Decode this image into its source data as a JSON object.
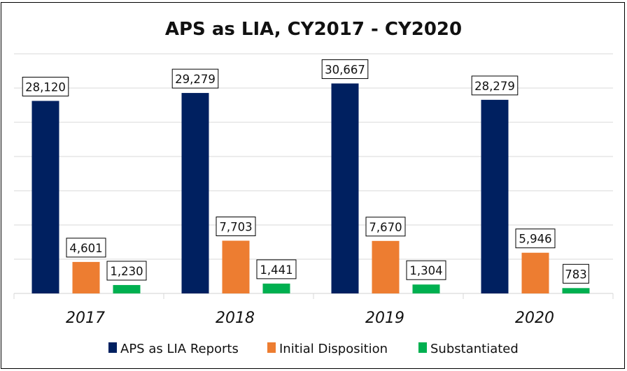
{
  "chart_data": {
    "type": "bar",
    "title": "APS as LIA, CY2017 - CY2020",
    "xlabel": "",
    "ylabel": "",
    "categories": [
      "2017",
      "2018",
      "2019",
      "2020"
    ],
    "series": [
      {
        "name": "APS as LIA Reports",
        "color": "#002060",
        "values": [
          28120,
          29279,
          30667,
          28279
        ],
        "labels": [
          "28,120",
          "29,279",
          "30,667",
          "28,279"
        ]
      },
      {
        "name": "Initial Disposition",
        "color": "#ED7D31",
        "values": [
          4601,
          7703,
          7670,
          5946
        ],
        "labels": [
          "4,601",
          "7,703",
          "7,670",
          "5,946"
        ]
      },
      {
        "name": "Substantiated",
        "color": "#00B050",
        "values": [
          1230,
          1441,
          1304,
          783
        ],
        "labels": [
          "1,230",
          "1,441",
          "1,304",
          "783"
        ]
      }
    ],
    "ylim": [
      0,
      35000
    ],
    "y_gridline_step": 5000,
    "grid": true,
    "y_tick_labels_visible": false,
    "legend_position": "bottom",
    "data_labels": true
  },
  "colors": {
    "gridline": "#D9D9D9",
    "axis": "#D9D9D9",
    "border": "#000000"
  }
}
